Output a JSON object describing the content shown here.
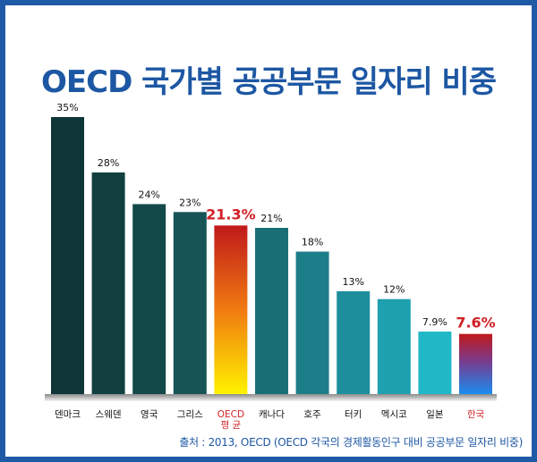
{
  "chart_data": {
    "type": "bar",
    "title": "OECD 국가별 공공부문 일자리 비중",
    "categories": [
      "덴마크",
      "스웨덴",
      "영국",
      "그리스",
      "OECD\n평 균",
      "캐나다",
      "호주",
      "터키",
      "멕시코",
      "일본",
      "한국"
    ],
    "values": [
      35,
      28,
      24,
      23,
      21.3,
      21,
      18,
      13,
      12,
      7.9,
      7.6
    ],
    "labels": [
      "35%",
      "28%",
      "24%",
      "23%",
      "21.3%",
      "21%",
      "18%",
      "13%",
      "12%",
      "7.9%",
      "7.6%"
    ],
    "highlight": [
      "OECD\n평 균",
      "한국"
    ],
    "ylim": [
      0,
      35
    ],
    "xlabel": "",
    "ylabel": "",
    "grid": false,
    "legend": "none"
  },
  "source": "출처 : 2013, OECD (OECD 각국의 경제활동인구 대비 공공부문 일자리 비중)",
  "colors": {
    "border": "#1f5aa6",
    "title": "#1d57a3",
    "highlight_text": "#d01f26",
    "baseline": "#888888"
  }
}
